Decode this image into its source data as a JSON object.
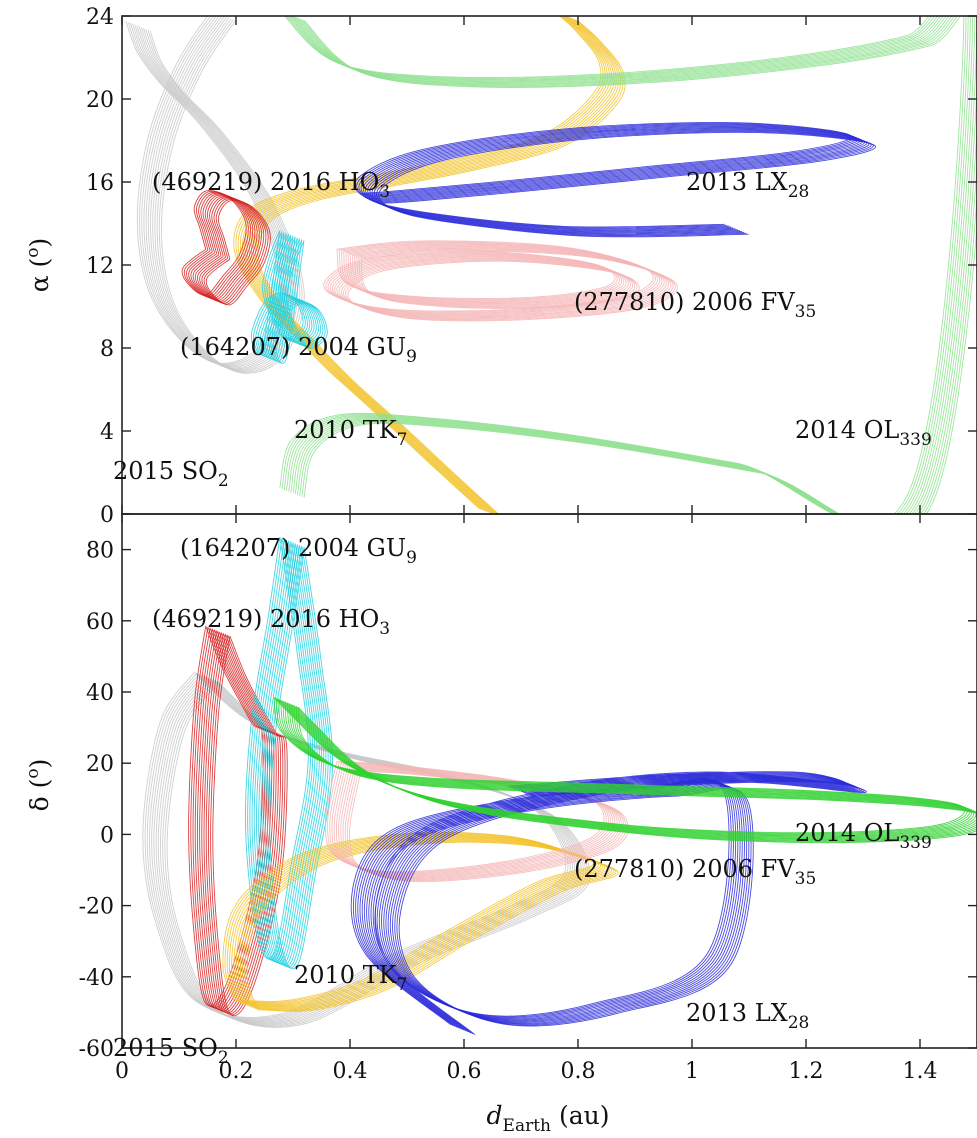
{
  "chart_data": [
    {
      "type": "line",
      "panel": "top",
      "ylabel": "α (⁰)",
      "ylabel_main": "α (",
      "ylabel_sup": "o",
      "ylabel_end": ")",
      "xlim": [
        0,
        1.5
      ],
      "ylim": [
        0,
        24
      ],
      "yticks": [
        "0",
        "4",
        "8",
        "12",
        "16",
        "20",
        "24"
      ],
      "yticks_values": [
        0,
        4,
        8,
        12,
        16,
        20,
        24
      ],
      "series": [
        {
          "name": "2015 SO2",
          "color": "#c8c8c8",
          "x": [
            0.18,
            0.12,
            0.07,
            0.05,
            0.07,
            0.13,
            0.2,
            0.27,
            0.3,
            0.25,
            0.16,
            0.09,
            0.05,
            0.03
          ],
          "y": [
            24,
            21.5,
            18,
            14,
            10.5,
            8.0,
            7.0,
            8.0,
            11,
            15,
            18.5,
            20.5,
            22,
            23.5
          ]
        },
        {
          "name": "2010 TK7",
          "color": "#f2c227",
          "x": [
            0.65,
            0.57,
            0.5,
            0.44,
            0.38,
            0.32,
            0.26,
            0.22,
            0.24,
            0.32,
            0.45,
            0.6,
            0.76,
            0.85,
            0.86,
            0.82,
            0.78
          ],
          "y": [
            0,
            2.0,
            3.8,
            5.3,
            6.8,
            8.5,
            10.3,
            12.5,
            14.3,
            15.3,
            16.0,
            16.8,
            18.0,
            20.0,
            21.5,
            23.0,
            24
          ]
        },
        {
          "name": "2014 OL339",
          "color": "#8fe08f",
          "x": [
            0.3,
            0.4,
            0.6,
            0.9,
            1.2,
            1.4,
            1.5,
            1.4,
            1.1,
            0.8,
            0.55,
            0.4,
            0.32,
            0.3
          ],
          "y": [
            24,
            21.5,
            20.8,
            21.0,
            21.8,
            22.8,
            24,
            0.6,
            2.2,
            3.6,
            4.4,
            4.5,
            3.3,
            1.0
          ]
        },
        {
          "name": "2013 LX28",
          "color": "#2a2ad9",
          "x": [
            1.08,
            0.8,
            0.55,
            0.45,
            0.44,
            0.55,
            0.8,
            1.1,
            1.3,
            1.2,
            0.95,
            0.7,
            0.5,
            0.44
          ],
          "y": [
            13.7,
            13.6,
            14.3,
            15.0,
            16.0,
            17.3,
            18.3,
            18.6,
            18.0,
            17.2,
            16.5,
            15.8,
            15.3,
            15.2
          ]
        },
        {
          "name": "(277810) 2006 FV35",
          "color": "#f5b5b5",
          "x": [
            0.4,
            0.55,
            0.8,
            0.95,
            0.9,
            0.7,
            0.5,
            0.4,
            0.38,
            0.45,
            0.65,
            0.85,
            0.88,
            0.75,
            0.55,
            0.42,
            0.4
          ],
          "y": [
            12.5,
            12.9,
            12.6,
            11.4,
            10.2,
            9.6,
            9.6,
            10.2,
            11.0,
            12.0,
            12.4,
            11.8,
            10.8,
            10.2,
            10.2,
            10.8,
            12.5
          ]
        },
        {
          "name": "(469219) 2016 HO3",
          "color": "#d62020",
          "x": [
            0.17,
            0.16,
            0.15,
            0.17,
            0.21,
            0.24,
            0.23,
            0.2,
            0.17,
            0.14,
            0.13,
            0.17
          ],
          "y": [
            12.5,
            13.5,
            14.5,
            15.3,
            15.0,
            13.8,
            12.3,
            11.2,
            10.3,
            10.8,
            11.6,
            12.5
          ]
        },
        {
          "name": "(164207) 2004 GU9",
          "color": "#20d0e0",
          "x": [
            0.3,
            0.28,
            0.27,
            0.29,
            0.31,
            0.34,
            0.33,
            0.3,
            0.27,
            0.25,
            0.27,
            0.3
          ],
          "y": [
            13.4,
            12.0,
            10.5,
            9.0,
            8.2,
            8.8,
            9.9,
            10.4,
            9.8,
            8.3,
            7.8,
            13.4
          ]
        }
      ],
      "annotations": [
        {
          "text": "(469219) 2016 HO",
          "sub": "3"
        },
        {
          "text": "2013 LX",
          "sub": "28"
        },
        {
          "text": "(277810) 2006 FV",
          "sub": "35"
        },
        {
          "text": "(164207) 2004 GU",
          "sub": "9"
        },
        {
          "text": "2010 TK",
          "sub": "7"
        },
        {
          "text": "2014 OL",
          "sub": "339"
        },
        {
          "text": "2015 SO",
          "sub": "2"
        }
      ]
    },
    {
      "type": "line",
      "panel": "bottom",
      "xlabel": "d_Earth (au)",
      "xlabel_main": "d",
      "xlabel_sub": "Earth",
      "xlabel_end": " (au)",
      "ylabel": "δ (⁰)",
      "ylabel_main": "δ (",
      "ylabel_sup": "o",
      "ylabel_end": ")",
      "xlim": [
        0,
        1.5
      ],
      "ylim": [
        -60,
        90
      ],
      "xticks": [
        "0",
        "0.2",
        "0.4",
        "0.6",
        "0.8",
        "1",
        "1.2",
        "1.4"
      ],
      "xticks_values": [
        0,
        0.2,
        0.4,
        0.6,
        0.8,
        1.0,
        1.2,
        1.4
      ],
      "yticks": [
        "-60",
        "-40",
        "-20",
        "0",
        "20",
        "40",
        "60",
        "80"
      ],
      "yticks_values": [
        -60,
        -40,
        -20,
        0,
        20,
        40,
        60,
        80
      ],
      "series": [
        {
          "name": "2015 SO2",
          "color": "#c8c8c8",
          "x": [
            0.15,
            0.09,
            0.06,
            0.08,
            0.15,
            0.3,
            0.5,
            0.7,
            0.8,
            0.75,
            0.6,
            0.4,
            0.25,
            0.15
          ],
          "y": [
            44,
            30,
            0,
            -25,
            -48,
            -52,
            -35,
            -22,
            -12,
            5,
            15,
            22,
            30,
            44
          ]
        },
        {
          "name": "(469219) 2016 HO3",
          "color": "#d62020",
          "x": [
            0.17,
            0.15,
            0.14,
            0.15,
            0.17,
            0.21,
            0.26,
            0.27,
            0.25,
            0.2,
            0.17
          ],
          "y": [
            57,
            35,
            0,
            -30,
            -49,
            -42,
            -10,
            25,
            30,
            45,
            57
          ]
        },
        {
          "name": "(164207) 2004 GU9",
          "color": "#20d0e0",
          "x": [
            0.3,
            0.28,
            0.25,
            0.24,
            0.26,
            0.29,
            0.32,
            0.35,
            0.33,
            0.31,
            0.3
          ],
          "y": [
            82,
            60,
            30,
            0,
            -30,
            -35,
            -10,
            20,
            50,
            72,
            82
          ]
        },
        {
          "name": "2010 TK7",
          "color": "#f2c227",
          "x": [
            0.22,
            0.2,
            0.22,
            0.3,
            0.4,
            0.55,
            0.7,
            0.8,
            0.85,
            0.75,
            0.6,
            0.45,
            0.32,
            0.22
          ],
          "y": [
            -48,
            -38,
            -22,
            -10,
            -4,
            -1,
            -2,
            -6,
            -10,
            -15,
            -28,
            -42,
            -48,
            -48
          ]
        },
        {
          "name": "(277810) 2006 FV35",
          "color": "#f5b5b5",
          "x": [
            0.4,
            0.5,
            0.7,
            0.85,
            0.85,
            0.7,
            0.5,
            0.4,
            0.38,
            0.4
          ],
          "y": [
            19,
            18,
            14,
            8,
            -2,
            -9,
            -12,
            -8,
            2,
            19
          ]
        },
        {
          "name": "2013 LX28",
          "color": "#2a2ad9",
          "x": [
            0.6,
            0.45,
            0.43,
            0.5,
            0.7,
            0.95,
            1.08,
            1.05,
            0.85,
            0.65,
            0.5,
            0.47,
            0.55,
            0.8,
            1.05,
            1.28,
            1.2,
            0.95,
            0.7
          ],
          "y": [
            -55,
            -35,
            -15,
            0,
            8,
            12,
            10,
            -35,
            -49,
            -52,
            -40,
            -20,
            0,
            12,
            16,
            13,
            16,
            15,
            12
          ]
        },
        {
          "name": "2014 OL339",
          "color": "#2fd12f",
          "x": [
            0.29,
            0.3,
            0.36,
            0.45,
            0.6,
            0.8,
            1.0,
            1.2,
            1.4,
            1.5,
            1.45,
            1.25,
            1.0,
            0.8,
            0.62,
            0.5,
            0.4,
            0.32,
            0.29
          ],
          "y": [
            37,
            28,
            20,
            16,
            14,
            13,
            12,
            11,
            9,
            6,
            1,
            -1,
            0,
            3,
            7,
            12,
            20,
            32,
            37
          ]
        }
      ],
      "annotations": [
        {
          "text": "(164207) 2004 GU",
          "sub": "9"
        },
        {
          "text": "(469219) 2016 HO",
          "sub": "3"
        },
        {
          "text": "2014 OL",
          "sub": "339"
        },
        {
          "text": "(277810) 2006 FV",
          "sub": "35"
        },
        {
          "text": "2010 TK",
          "sub": "7"
        },
        {
          "text": "2013 LX",
          "sub": "28"
        },
        {
          "text": "2015 SO",
          "sub": "2"
        }
      ]
    }
  ]
}
